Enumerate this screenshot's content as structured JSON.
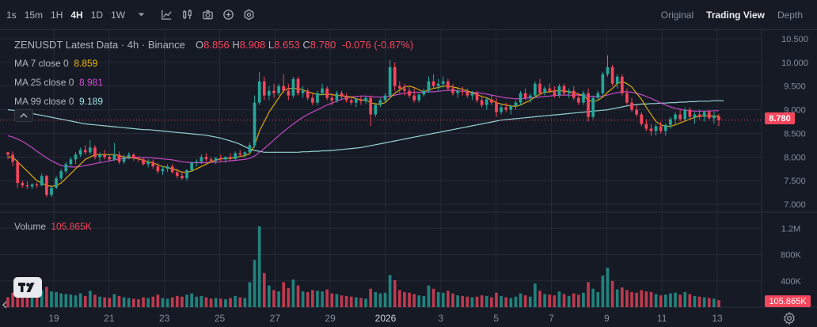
{
  "toolbar": {
    "timeframes": [
      {
        "label": "1s",
        "active": false
      },
      {
        "label": "15m",
        "active": false
      },
      {
        "label": "1H",
        "active": false
      },
      {
        "label": "4H",
        "active": true
      },
      {
        "label": "1D",
        "active": false
      },
      {
        "label": "1W",
        "active": false
      }
    ],
    "icons": [
      "chevron-down-icon",
      "indicators-icon",
      "chart-type-icon",
      "camera-icon",
      "add-circle-icon",
      "settings-hex-icon"
    ],
    "views": [
      {
        "label": "Original",
        "active": false
      },
      {
        "label": "Trading View",
        "active": true
      },
      {
        "label": "Depth",
        "active": false
      }
    ]
  },
  "legend": {
    "title": "ZENUSDT Latest Data · 4h · Binance",
    "open_key": "O",
    "open": "8.856",
    "high_key": "H",
    "high": "8.908",
    "low_key": "L",
    "low": "8.653",
    "close_key": "C",
    "close": "8.780",
    "change": "-0.076 (-0.87%)",
    "ma7_label": "MA 7 close 0",
    "ma7_value": "8.859",
    "ma7_color": "#f0b90b",
    "ma25_label": "MA 25 close 0",
    "ma25_value": "8.981",
    "ma25_color": "#d64ed6",
    "ma99_label": "MA 99 close 0",
    "ma99_value": "9.189",
    "ma99_color": "#9ee6e6"
  },
  "volume_legend": {
    "label": "Volume",
    "value": "105.865K"
  },
  "price_tag": "8.780",
  "volume_tag": "105.865K",
  "colors": {
    "up": "#26a69a",
    "down": "#f6465d",
    "background": "#161a25",
    "grid": "#262a36"
  },
  "chart_data": {
    "type": "candlestick",
    "symbol": "ZENUSDT",
    "interval": "4h",
    "ylim": [
      6.8,
      10.6
    ],
    "y_ticks": [
      "10.500",
      "10.000",
      "9.500",
      "9.000",
      "8.500",
      "8.000",
      "7.500",
      "7.000"
    ],
    "volume_ticks": [
      "1.2M",
      "800K",
      "400K"
    ],
    "x_ticks": [
      "19",
      "21",
      "23",
      "25",
      "27",
      "29",
      "2026",
      "3",
      "5",
      "7",
      "9",
      "11",
      "13"
    ],
    "volume_ylim": [
      0,
      1300
    ],
    "candles": [
      [
        8.1,
        8.1,
        7.95,
        8.05,
        150
      ],
      [
        8.05,
        8.12,
        7.8,
        7.9,
        220
      ],
      [
        7.9,
        7.95,
        7.35,
        7.45,
        380
      ],
      [
        7.45,
        7.5,
        7.35,
        7.4,
        200
      ],
      [
        7.4,
        7.48,
        7.33,
        7.38,
        180
      ],
      [
        7.38,
        7.45,
        7.32,
        7.42,
        170
      ],
      [
        7.42,
        7.46,
        7.35,
        7.4,
        160
      ],
      [
        7.4,
        7.65,
        7.38,
        7.6,
        260
      ],
      [
        7.6,
        7.62,
        7.15,
        7.2,
        310
      ],
      [
        7.2,
        7.4,
        7.15,
        7.35,
        240
      ],
      [
        7.35,
        7.6,
        7.32,
        7.55,
        230
      ],
      [
        7.55,
        7.75,
        7.5,
        7.7,
        210
      ],
      [
        7.7,
        7.9,
        7.65,
        7.85,
        200
      ],
      [
        7.85,
        8.0,
        7.8,
        7.95,
        190
      ],
      [
        7.95,
        8.1,
        7.85,
        8.05,
        180
      ],
      [
        8.05,
        8.2,
        8.0,
        8.15,
        210
      ],
      [
        8.15,
        8.25,
        8.05,
        8.1,
        170
      ],
      [
        8.1,
        8.35,
        8.05,
        8.2,
        250
      ],
      [
        8.2,
        8.25,
        7.95,
        8.0,
        190
      ],
      [
        8.0,
        8.1,
        7.9,
        8.05,
        160
      ],
      [
        8.05,
        8.15,
        7.95,
        8.0,
        150
      ],
      [
        8.0,
        8.05,
        7.9,
        7.95,
        140
      ],
      [
        7.95,
        8.3,
        7.92,
        8.05,
        200
      ],
      [
        8.05,
        8.12,
        7.85,
        7.9,
        170
      ],
      [
        7.9,
        8.05,
        7.85,
        8.0,
        150
      ],
      [
        8.0,
        8.1,
        7.95,
        8.05,
        140
      ],
      [
        8.05,
        8.08,
        7.92,
        7.97,
        130
      ],
      [
        7.97,
        8.02,
        7.9,
        7.95,
        120
      ],
      [
        7.95,
        8.0,
        7.82,
        7.85,
        150
      ],
      [
        7.85,
        7.95,
        7.78,
        7.9,
        140
      ],
      [
        7.9,
        7.95,
        7.75,
        7.8,
        160
      ],
      [
        7.8,
        7.88,
        7.65,
        7.7,
        190
      ],
      [
        7.7,
        7.8,
        7.62,
        7.75,
        140
      ],
      [
        7.75,
        7.85,
        7.68,
        7.8,
        130
      ],
      [
        7.8,
        7.85,
        7.65,
        7.68,
        150
      ],
      [
        7.68,
        7.75,
        7.55,
        7.6,
        170
      ],
      [
        7.6,
        7.7,
        7.52,
        7.55,
        160
      ],
      [
        7.55,
        7.75,
        7.5,
        7.72,
        190
      ],
      [
        7.72,
        7.9,
        7.7,
        7.88,
        210
      ],
      [
        7.88,
        7.95,
        7.8,
        7.9,
        160
      ],
      [
        7.9,
        8.05,
        7.85,
        8.0,
        170
      ],
      [
        8.0,
        8.08,
        7.9,
        7.95,
        150
      ],
      [
        7.95,
        8.0,
        7.88,
        7.92,
        130
      ],
      [
        7.92,
        8.0,
        7.85,
        7.98,
        140
      ],
      [
        7.98,
        8.05,
        7.9,
        7.95,
        130
      ],
      [
        7.95,
        8.02,
        7.88,
        8.0,
        120
      ],
      [
        8.0,
        8.08,
        7.92,
        7.96,
        140
      ],
      [
        7.96,
        8.12,
        7.94,
        8.08,
        170
      ],
      [
        8.08,
        8.15,
        8.0,
        8.05,
        150
      ],
      [
        8.05,
        8.12,
        7.98,
        8.1,
        140
      ],
      [
        8.1,
        8.3,
        8.05,
        8.25,
        380
      ],
      [
        8.25,
        9.3,
        8.2,
        9.15,
        720
      ],
      [
        9.15,
        9.8,
        9.1,
        9.6,
        1230
      ],
      [
        9.6,
        9.7,
        9.2,
        9.3,
        520
      ],
      [
        9.3,
        9.5,
        9.2,
        9.4,
        330
      ],
      [
        9.4,
        9.55,
        9.25,
        9.35,
        260
      ],
      [
        9.35,
        9.55,
        9.3,
        9.5,
        240
      ],
      [
        9.5,
        9.75,
        9.35,
        9.4,
        380
      ],
      [
        9.4,
        9.55,
        9.2,
        9.3,
        290
      ],
      [
        9.3,
        9.7,
        9.25,
        9.65,
        420
      ],
      [
        9.65,
        9.7,
        9.3,
        9.35,
        330
      ],
      [
        9.35,
        9.5,
        9.25,
        9.4,
        240
      ],
      [
        9.4,
        9.45,
        9.2,
        9.25,
        230
      ],
      [
        9.25,
        9.35,
        9.1,
        9.15,
        260
      ],
      [
        9.15,
        9.4,
        9.1,
        9.35,
        250
      ],
      [
        9.35,
        9.55,
        9.3,
        9.45,
        240
      ],
      [
        9.45,
        9.5,
        9.2,
        9.25,
        270
      ],
      [
        9.25,
        9.35,
        9.1,
        9.2,
        210
      ],
      [
        9.2,
        9.4,
        9.15,
        9.35,
        200
      ],
      [
        9.35,
        9.4,
        9.22,
        9.28,
        180
      ],
      [
        9.28,
        9.35,
        9.15,
        9.2,
        170
      ],
      [
        9.2,
        9.25,
        9.1,
        9.15,
        160
      ],
      [
        9.15,
        9.25,
        9.05,
        9.22,
        150
      ],
      [
        9.22,
        9.3,
        9.1,
        9.18,
        140
      ],
      [
        9.18,
        9.28,
        9.12,
        9.25,
        130
      ],
      [
        9.25,
        9.3,
        8.65,
        8.9,
        280
      ],
      [
        8.9,
        9.15,
        8.85,
        9.1,
        230
      ],
      [
        9.1,
        9.25,
        9.05,
        9.2,
        210
      ],
      [
        9.2,
        9.35,
        9.15,
        9.3,
        220
      ],
      [
        9.3,
        10.05,
        9.25,
        9.9,
        490
      ],
      [
        9.9,
        10.0,
        9.4,
        9.5,
        410
      ],
      [
        9.5,
        9.6,
        9.35,
        9.45,
        260
      ],
      [
        9.45,
        9.55,
        9.3,
        9.4,
        230
      ],
      [
        9.4,
        9.5,
        9.25,
        9.3,
        220
      ],
      [
        9.3,
        9.45,
        9.15,
        9.2,
        200
      ],
      [
        9.2,
        9.35,
        9.15,
        9.32,
        180
      ],
      [
        9.32,
        9.45,
        9.28,
        9.4,
        170
      ],
      [
        9.4,
        9.7,
        9.35,
        9.6,
        330
      ],
      [
        9.6,
        9.75,
        9.45,
        9.5,
        280
      ],
      [
        9.5,
        9.65,
        9.4,
        9.55,
        230
      ],
      [
        9.55,
        9.7,
        9.45,
        9.6,
        220
      ],
      [
        9.6,
        9.65,
        9.4,
        9.45,
        250
      ],
      [
        9.45,
        9.55,
        9.3,
        9.35,
        210
      ],
      [
        9.35,
        9.45,
        9.25,
        9.4,
        180
      ],
      [
        9.4,
        9.48,
        9.3,
        9.38,
        170
      ],
      [
        9.38,
        9.45,
        9.25,
        9.3,
        160
      ],
      [
        9.3,
        9.4,
        9.2,
        9.35,
        150
      ],
      [
        9.35,
        9.4,
        9.15,
        9.2,
        160
      ],
      [
        9.2,
        9.3,
        9.05,
        9.1,
        180
      ],
      [
        9.1,
        9.25,
        9.0,
        9.22,
        170
      ],
      [
        9.22,
        9.3,
        9.1,
        9.15,
        150
      ],
      [
        9.15,
        9.25,
        8.85,
        8.95,
        220
      ],
      [
        8.95,
        9.1,
        8.9,
        9.05,
        170
      ],
      [
        9.05,
        9.15,
        8.95,
        9.0,
        150
      ],
      [
        9.0,
        9.1,
        8.9,
        9.08,
        140
      ],
      [
        9.08,
        9.2,
        9.0,
        9.15,
        160
      ],
      [
        9.15,
        9.4,
        9.1,
        9.35,
        210
      ],
      [
        9.35,
        9.45,
        9.2,
        9.25,
        180
      ],
      [
        9.25,
        9.35,
        9.15,
        9.3,
        160
      ],
      [
        9.3,
        9.6,
        9.25,
        9.55,
        360
      ],
      [
        9.55,
        9.65,
        9.3,
        9.35,
        250
      ],
      [
        9.35,
        9.5,
        9.3,
        9.45,
        200
      ],
      [
        9.45,
        9.55,
        9.35,
        9.4,
        190
      ],
      [
        9.4,
        9.5,
        9.25,
        9.3,
        180
      ],
      [
        9.3,
        9.55,
        9.25,
        9.5,
        240
      ],
      [
        9.5,
        9.55,
        9.3,
        9.35,
        200
      ],
      [
        9.35,
        9.45,
        9.25,
        9.4,
        170
      ],
      [
        9.4,
        9.5,
        9.2,
        9.25,
        210
      ],
      [
        9.25,
        9.35,
        9.1,
        9.15,
        190
      ],
      [
        9.15,
        9.4,
        9.1,
        9.35,
        220
      ],
      [
        9.35,
        9.45,
        8.75,
        8.85,
        380
      ],
      [
        8.85,
        9.3,
        8.8,
        9.25,
        280
      ],
      [
        9.25,
        9.4,
        9.2,
        9.35,
        230
      ],
      [
        9.35,
        9.8,
        9.3,
        9.75,
        480
      ],
      [
        9.75,
        10.15,
        9.7,
        9.9,
        600
      ],
      [
        9.9,
        9.95,
        9.5,
        9.55,
        400
      ],
      [
        9.55,
        9.75,
        9.45,
        9.7,
        270
      ],
      [
        9.7,
        9.75,
        9.3,
        9.35,
        300
      ],
      [
        9.35,
        9.45,
        9.1,
        9.15,
        260
      ],
      [
        9.15,
        9.25,
        8.95,
        9.0,
        230
      ],
      [
        9.0,
        9.1,
        8.85,
        8.9,
        220
      ],
      [
        8.9,
        8.95,
        8.65,
        8.7,
        260
      ],
      [
        8.7,
        8.8,
        8.55,
        8.6,
        240
      ],
      [
        8.6,
        8.7,
        8.45,
        8.55,
        230
      ],
      [
        8.55,
        8.7,
        8.45,
        8.65,
        200
      ],
      [
        8.65,
        8.75,
        8.5,
        8.55,
        180
      ],
      [
        8.55,
        8.7,
        8.45,
        8.68,
        190
      ],
      [
        8.68,
        8.85,
        8.6,
        8.8,
        210
      ],
      [
        8.8,
        8.95,
        8.7,
        8.9,
        220
      ],
      [
        8.9,
        9.0,
        8.75,
        8.8,
        190
      ],
      [
        8.8,
        9.05,
        8.75,
        9.0,
        230
      ],
      [
        9.0,
        9.05,
        8.8,
        8.85,
        200
      ],
      [
        8.85,
        8.95,
        8.7,
        8.9,
        170
      ],
      [
        8.9,
        9.0,
        8.8,
        8.85,
        160
      ],
      [
        8.85,
        8.98,
        8.75,
        8.95,
        150
      ],
      [
        8.95,
        9.0,
        8.8,
        8.82,
        140
      ],
      [
        8.82,
        8.95,
        8.7,
        8.88,
        130
      ],
      [
        8.856,
        8.908,
        8.653,
        8.78,
        106
      ]
    ],
    "ma7": [
      8.0,
      8.0,
      7.9,
      7.8,
      7.7,
      7.6,
      7.5,
      7.45,
      7.4,
      7.38,
      7.4,
      7.45,
      7.55,
      7.65,
      7.75,
      7.85,
      7.95,
      8.0,
      8.05,
      8.05,
      8.05,
      8.05,
      8.05,
      8.03,
      8.0,
      8.0,
      7.98,
      7.96,
      7.93,
      7.9,
      7.88,
      7.83,
      7.8,
      7.78,
      7.75,
      7.72,
      7.68,
      7.68,
      7.7,
      7.75,
      7.8,
      7.85,
      7.9,
      7.93,
      7.96,
      7.97,
      7.97,
      7.99,
      8.01,
      8.03,
      8.07,
      8.25,
      8.55,
      8.75,
      8.95,
      9.1,
      9.25,
      9.4,
      9.45,
      9.45,
      9.45,
      9.42,
      9.38,
      9.35,
      9.32,
      9.32,
      9.33,
      9.32,
      9.3,
      9.3,
      9.28,
      9.27,
      9.23,
      9.21,
      9.2,
      9.15,
      9.12,
      9.12,
      9.15,
      9.25,
      9.35,
      9.42,
      9.48,
      9.5,
      9.47,
      9.42,
      9.38,
      9.42,
      9.45,
      9.47,
      9.5,
      9.5,
      9.48,
      9.46,
      9.43,
      9.4,
      9.36,
      9.32,
      9.28,
      9.25,
      9.2,
      9.15,
      9.12,
      9.1,
      9.08,
      9.07,
      9.1,
      9.15,
      9.2,
      9.27,
      9.33,
      9.37,
      9.38,
      9.4,
      9.4,
      9.4,
      9.38,
      9.36,
      9.33,
      9.3,
      9.2,
      9.17,
      9.2,
      9.27,
      9.37,
      9.45,
      9.55,
      9.6,
      9.55,
      9.48,
      9.35,
      9.22,
      9.05,
      8.9,
      8.75,
      8.68,
      8.65,
      8.65,
      8.68,
      8.72,
      8.76,
      8.8,
      8.84,
      8.86,
      8.87,
      8.87,
      8.86,
      8.86
    ],
    "ma25": [
      8.45,
      8.42,
      8.38,
      8.33,
      8.27,
      8.2,
      8.12,
      8.05,
      7.98,
      7.92,
      7.87,
      7.82,
      7.8,
      7.79,
      7.79,
      7.8,
      7.82,
      7.84,
      7.86,
      7.88,
      7.9,
      7.92,
      7.94,
      7.96,
      7.97,
      7.98,
      7.99,
      7.99,
      7.99,
      7.99,
      7.98,
      7.97,
      7.96,
      7.95,
      7.94,
      7.92,
      7.9,
      7.89,
      7.88,
      7.88,
      7.88,
      7.88,
      7.89,
      7.89,
      7.9,
      7.91,
      7.92,
      7.93,
      7.94,
      7.95,
      7.97,
      8.02,
      8.1,
      8.18,
      8.27,
      8.36,
      8.45,
      8.54,
      8.62,
      8.7,
      8.77,
      8.84,
      8.9,
      8.95,
      9.0,
      9.05,
      9.1,
      9.14,
      9.18,
      9.22,
      9.25,
      9.27,
      9.28,
      9.29,
      9.29,
      9.28,
      9.27,
      9.27,
      9.27,
      9.29,
      9.31,
      9.33,
      9.35,
      9.36,
      9.37,
      9.37,
      9.37,
      9.38,
      9.38,
      9.39,
      9.4,
      9.41,
      9.41,
      9.4,
      9.39,
      9.38,
      9.37,
      9.36,
      9.35,
      9.33,
      9.31,
      9.29,
      9.27,
      9.25,
      9.24,
      9.23,
      9.23,
      9.24,
      9.25,
      9.26,
      9.27,
      9.28,
      9.29,
      9.3,
      9.31,
      9.31,
      9.31,
      9.31,
      9.31,
      9.3,
      9.29,
      9.28,
      9.28,
      9.29,
      9.31,
      9.34,
      9.36,
      9.38,
      9.38,
      9.37,
      9.35,
      9.32,
      9.28,
      9.24,
      9.19,
      9.14,
      9.1,
      9.06,
      9.03,
      9.01,
      8.99,
      8.98,
      8.97,
      8.97,
      8.97,
      8.97,
      8.98,
      8.98
    ],
    "ma99": [
      9.0,
      8.99,
      8.98,
      8.96,
      8.94,
      8.92,
      8.9,
      8.88,
      8.86,
      8.84,
      8.82,
      8.8,
      8.78,
      8.76,
      8.74,
      8.72,
      8.7,
      8.69,
      8.68,
      8.67,
      8.66,
      8.65,
      8.64,
      8.63,
      8.62,
      8.61,
      8.6,
      8.59,
      8.58,
      8.58,
      8.57,
      8.56,
      8.55,
      8.54,
      8.53,
      8.52,
      8.51,
      8.5,
      8.49,
      8.48,
      8.47,
      8.46,
      8.44,
      8.42,
      8.4,
      8.37,
      8.34,
      8.31,
      8.27,
      8.22,
      8.17,
      8.14,
      8.12,
      8.1,
      8.1,
      8.1,
      8.1,
      8.1,
      8.1,
      8.1,
      8.1,
      8.11,
      8.11,
      8.12,
      8.12,
      8.13,
      8.13,
      8.14,
      8.15,
      8.16,
      8.17,
      8.18,
      8.19,
      8.2,
      8.22,
      8.24,
      8.26,
      8.28,
      8.3,
      8.32,
      8.34,
      8.36,
      8.38,
      8.4,
      8.42,
      8.44,
      8.46,
      8.48,
      8.5,
      8.52,
      8.54,
      8.56,
      8.58,
      8.6,
      8.62,
      8.64,
      8.66,
      8.68,
      8.7,
      8.72,
      8.74,
      8.76,
      8.78,
      8.79,
      8.8,
      8.81,
      8.82,
      8.83,
      8.84,
      8.85,
      8.86,
      8.87,
      8.88,
      8.89,
      8.9,
      8.91,
      8.92,
      8.93,
      8.94,
      8.95,
      8.96,
      8.97,
      8.98,
      8.99,
      9.0,
      9.02,
      9.04,
      9.06,
      9.08,
      9.1,
      9.11,
      9.12,
      9.12,
      9.13,
      9.13,
      9.14,
      9.14,
      9.15,
      9.15,
      9.16,
      9.16,
      9.17,
      9.17,
      9.18,
      9.18,
      9.18,
      9.19,
      9.19,
      9.189
    ]
  }
}
